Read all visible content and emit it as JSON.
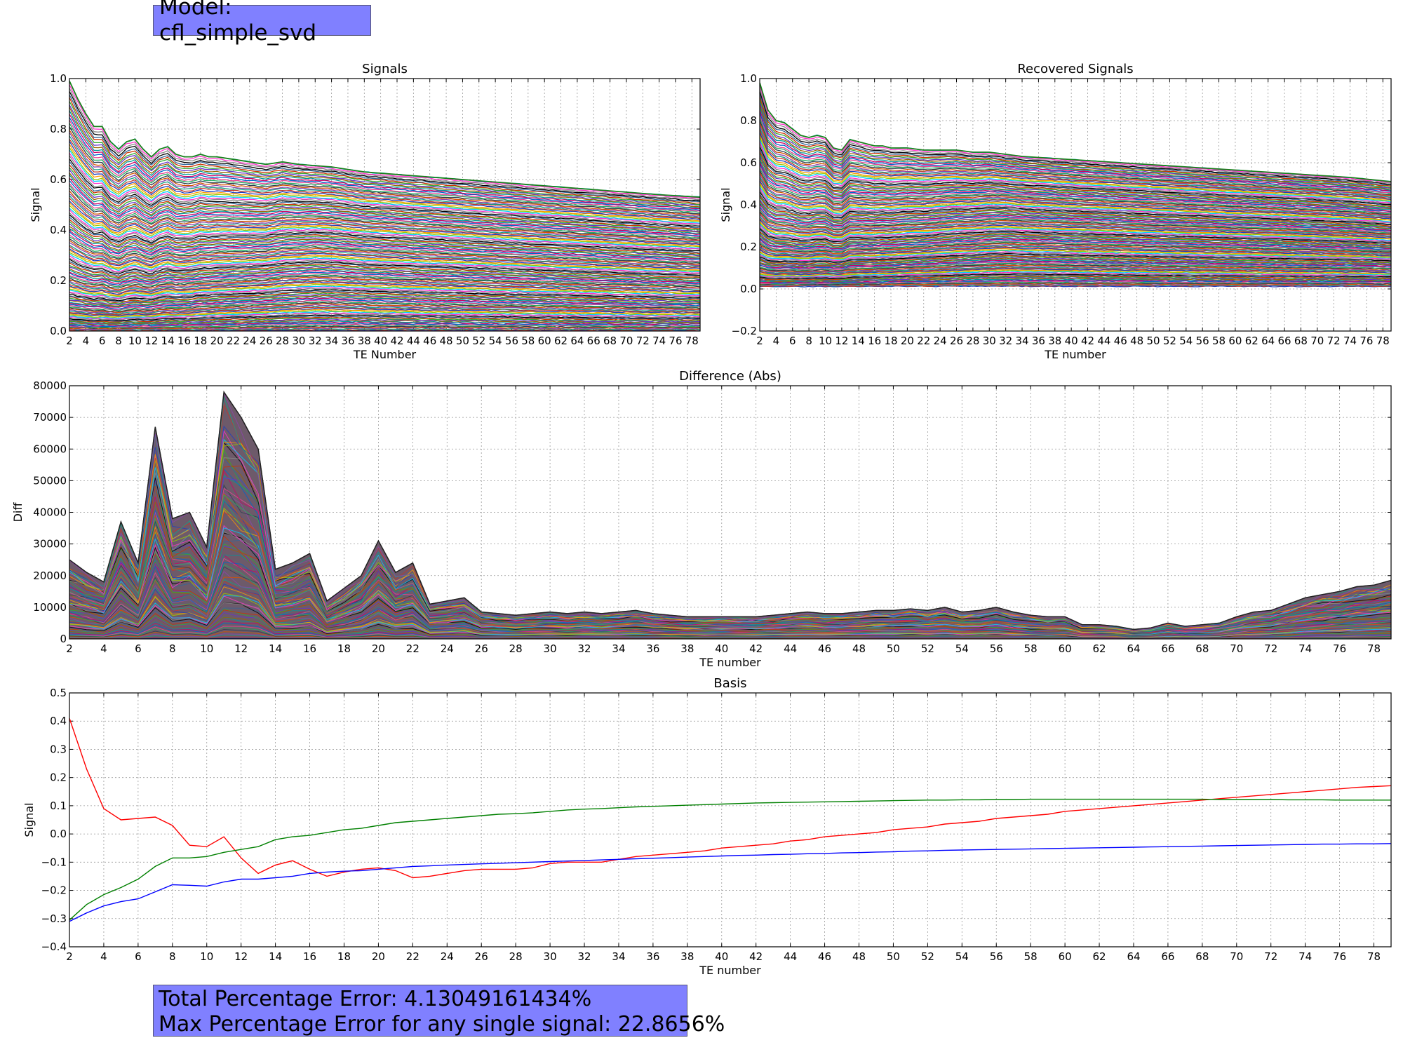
{
  "model_label": "Model: cfl_simple_svd",
  "error_summary": {
    "total_line": "Total Percentage Error: 4.13049161434%",
    "max_line": "Max Percentage Error for any single signal: 22.8656%"
  },
  "colors": {
    "info_box": "#8080ff",
    "basis_red": "#ff0000",
    "basis_green": "#008000",
    "basis_blue": "#0000ff",
    "grid": "#b0b0b0"
  },
  "chart_data": [
    {
      "id": "signals",
      "type": "line",
      "title": "Signals",
      "xlabel": "TE Number",
      "ylabel": "Signal",
      "xlim": [
        2,
        79
      ],
      "ylim": [
        0.0,
        1.0
      ],
      "xticks": [
        2,
        4,
        6,
        8,
        10,
        12,
        14,
        16,
        18,
        20,
        22,
        24,
        26,
        28,
        30,
        32,
        34,
        36,
        38,
        40,
        42,
        44,
        46,
        48,
        50,
        52,
        54,
        56,
        58,
        60,
        62,
        64,
        66,
        68,
        70,
        72,
        74,
        76,
        78
      ],
      "yticks": [
        "0.0",
        "0.2",
        "0.4",
        "0.6",
        "0.8",
        "1.0"
      ],
      "grid": true,
      "envelope_x": [
        2,
        3,
        4,
        5,
        6,
        7,
        8,
        9,
        10,
        11,
        12,
        13,
        14,
        15,
        16,
        17,
        18,
        19,
        20,
        22,
        24,
        26,
        28,
        30,
        34,
        38,
        42,
        46,
        50,
        54,
        58,
        62,
        66,
        70,
        74,
        79
      ],
      "envelope_y": [
        0.99,
        0.92,
        0.86,
        0.81,
        0.81,
        0.75,
        0.72,
        0.75,
        0.76,
        0.72,
        0.69,
        0.72,
        0.73,
        0.7,
        0.69,
        0.69,
        0.7,
        0.69,
        0.69,
        0.68,
        0.67,
        0.66,
        0.67,
        0.66,
        0.65,
        0.63,
        0.62,
        0.61,
        0.6,
        0.59,
        0.58,
        0.57,
        0.56,
        0.55,
        0.54,
        0.53
      ]
    },
    {
      "id": "recovered",
      "type": "line",
      "title": "Recovered Signals",
      "xlabel": "TE number",
      "ylabel": "Signal",
      "xlim": [
        2,
        79
      ],
      "ylim": [
        -0.2,
        1.0
      ],
      "xticks": [
        2,
        4,
        6,
        8,
        10,
        12,
        14,
        16,
        18,
        20,
        22,
        24,
        26,
        28,
        30,
        32,
        34,
        36,
        38,
        40,
        42,
        44,
        46,
        48,
        50,
        52,
        54,
        56,
        58,
        60,
        62,
        64,
        66,
        68,
        70,
        72,
        74,
        76,
        78
      ],
      "yticks": [
        "−0.2",
        "0.0",
        "0.2",
        "0.4",
        "0.6",
        "0.8",
        "1.0"
      ],
      "grid": true,
      "envelope_x": [
        2,
        3,
        4,
        5,
        6,
        7,
        8,
        9,
        10,
        11,
        12,
        13,
        14,
        15,
        16,
        17,
        18,
        19,
        20,
        22,
        24,
        26,
        28,
        30,
        34,
        38,
        42,
        46,
        50,
        54,
        58,
        62,
        66,
        70,
        74,
        79
      ],
      "envelope_y": [
        0.98,
        0.85,
        0.8,
        0.79,
        0.76,
        0.73,
        0.72,
        0.73,
        0.72,
        0.67,
        0.66,
        0.71,
        0.7,
        0.69,
        0.68,
        0.68,
        0.67,
        0.67,
        0.67,
        0.66,
        0.66,
        0.66,
        0.65,
        0.65,
        0.63,
        0.62,
        0.61,
        0.6,
        0.59,
        0.58,
        0.57,
        0.56,
        0.55,
        0.54,
        0.53,
        0.51
      ]
    },
    {
      "id": "difference",
      "type": "area",
      "title": "Difference (Abs)",
      "xlabel": "TE number",
      "ylabel": "Diff",
      "xlim": [
        2,
        79
      ],
      "ylim": [
        0,
        80000
      ],
      "xticks": [
        2,
        4,
        6,
        8,
        10,
        12,
        14,
        16,
        18,
        20,
        22,
        24,
        26,
        28,
        30,
        32,
        34,
        36,
        38,
        40,
        42,
        44,
        46,
        48,
        50,
        52,
        54,
        56,
        58,
        60,
        62,
        64,
        66,
        68,
        70,
        72,
        74,
        76,
        78
      ],
      "yticks": [
        "0",
        "10000",
        "20000",
        "30000",
        "40000",
        "50000",
        "60000",
        "70000",
        "80000"
      ],
      "grid": true,
      "envelope_x": [
        2,
        3,
        4,
        5,
        6,
        7,
        8,
        9,
        10,
        11,
        12,
        13,
        14,
        15,
        16,
        17,
        18,
        19,
        20,
        21,
        22,
        23,
        24,
        25,
        26,
        27,
        28,
        29,
        30,
        31,
        32,
        33,
        34,
        35,
        36,
        37,
        38,
        39,
        40,
        41,
        42,
        43,
        44,
        45,
        46,
        47,
        48,
        49,
        50,
        51,
        52,
        53,
        54,
        55,
        56,
        57,
        58,
        59,
        60,
        61,
        62,
        63,
        64,
        65,
        66,
        67,
        68,
        69,
        70,
        71,
        72,
        73,
        74,
        75,
        76,
        77,
        78,
        79
      ],
      "envelope_y": [
        25000,
        21000,
        18000,
        37000,
        24000,
        67000,
        38000,
        40000,
        29000,
        78000,
        70000,
        60000,
        22000,
        24000,
        27000,
        12000,
        16000,
        20000,
        31000,
        21000,
        24000,
        11000,
        12000,
        13000,
        8500,
        8000,
        7500,
        8000,
        8500,
        8000,
        8500,
        8000,
        8500,
        9000,
        8000,
        7500,
        7000,
        7000,
        7000,
        7000,
        7000,
        7500,
        8000,
        8500,
        8000,
        8000,
        8500,
        9000,
        9000,
        9500,
        9000,
        10000,
        8500,
        9000,
        10000,
        8500,
        7500,
        7000,
        7000,
        4500,
        4500,
        4000,
        3000,
        3500,
        5000,
        4000,
        4500,
        5000,
        7000,
        8500,
        9000,
        11000,
        13000,
        14000,
        15000,
        16500,
        17000,
        18500
      ]
    },
    {
      "id": "basis",
      "type": "line",
      "title": "Basis",
      "xlabel": "TE number",
      "ylabel": "Signal",
      "xlim": [
        2,
        79
      ],
      "ylim": [
        -0.4,
        0.5
      ],
      "xticks": [
        2,
        4,
        6,
        8,
        10,
        12,
        14,
        16,
        18,
        20,
        22,
        24,
        26,
        28,
        30,
        32,
        34,
        36,
        38,
        40,
        42,
        44,
        46,
        48,
        50,
        52,
        54,
        56,
        58,
        60,
        62,
        64,
        66,
        68,
        70,
        72,
        74,
        76,
        78
      ],
      "yticks": [
        "−0.4",
        "−0.3",
        "−0.2",
        "−0.1",
        "0.0",
        "0.1",
        "0.2",
        "0.3",
        "0.4",
        "0.5"
      ],
      "grid": true,
      "x": [
        2,
        3,
        4,
        5,
        6,
        7,
        8,
        9,
        10,
        11,
        12,
        13,
        14,
        15,
        16,
        17,
        18,
        19,
        20,
        21,
        22,
        23,
        24,
        25,
        26,
        27,
        28,
        29,
        30,
        31,
        32,
        33,
        34,
        35,
        36,
        37,
        38,
        39,
        40,
        41,
        42,
        43,
        44,
        45,
        46,
        47,
        48,
        49,
        50,
        51,
        52,
        53,
        54,
        55,
        56,
        57,
        58,
        59,
        60,
        61,
        62,
        63,
        64,
        65,
        66,
        67,
        68,
        69,
        70,
        71,
        72,
        73,
        74,
        75,
        76,
        77,
        78,
        79
      ],
      "series": [
        {
          "color": "#ff0000",
          "values": [
            0.41,
            0.23,
            0.09,
            0.05,
            0.055,
            0.06,
            0.03,
            -0.04,
            -0.045,
            -0.01,
            -0.085,
            -0.14,
            -0.11,
            -0.095,
            -0.125,
            -0.15,
            -0.135,
            -0.125,
            -0.12,
            -0.13,
            -0.155,
            -0.15,
            -0.14,
            -0.13,
            -0.125,
            -0.125,
            -0.125,
            -0.12,
            -0.105,
            -0.1,
            -0.1,
            -0.1,
            -0.09,
            -0.08,
            -0.075,
            -0.07,
            -0.065,
            -0.06,
            -0.05,
            -0.045,
            -0.04,
            -0.035,
            -0.025,
            -0.02,
            -0.01,
            -0.005,
            0.0,
            0.005,
            0.015,
            0.02,
            0.025,
            0.035,
            0.04,
            0.045,
            0.055,
            0.06,
            0.065,
            0.07,
            0.08,
            0.085,
            0.09,
            0.095,
            0.1,
            0.105,
            0.11,
            0.115,
            0.12,
            0.125,
            0.13,
            0.135,
            0.14,
            0.145,
            0.15,
            0.155,
            0.16,
            0.165,
            0.168,
            0.171
          ]
        },
        {
          "color": "#008000",
          "values": [
            -0.305,
            -0.25,
            -0.215,
            -0.19,
            -0.16,
            -0.115,
            -0.085,
            -0.085,
            -0.08,
            -0.065,
            -0.055,
            -0.045,
            -0.02,
            -0.01,
            -0.005,
            0.005,
            0.015,
            0.02,
            0.03,
            0.04,
            0.045,
            0.05,
            0.055,
            0.06,
            0.065,
            0.07,
            0.072,
            0.075,
            0.08,
            0.085,
            0.088,
            0.09,
            0.093,
            0.096,
            0.098,
            0.1,
            0.102,
            0.104,
            0.106,
            0.108,
            0.11,
            0.111,
            0.112,
            0.113,
            0.114,
            0.115,
            0.116,
            0.117,
            0.118,
            0.119,
            0.12,
            0.12,
            0.121,
            0.121,
            0.122,
            0.122,
            0.123,
            0.123,
            0.123,
            0.123,
            0.123,
            0.123,
            0.123,
            0.123,
            0.123,
            0.123,
            0.123,
            0.122,
            0.122,
            0.122,
            0.122,
            0.121,
            0.121,
            0.121,
            0.12,
            0.12,
            0.12,
            0.12
          ]
        },
        {
          "color": "#0000ff",
          "values": [
            -0.31,
            -0.28,
            -0.255,
            -0.24,
            -0.23,
            -0.205,
            -0.18,
            -0.182,
            -0.185,
            -0.17,
            -0.16,
            -0.16,
            -0.155,
            -0.15,
            -0.14,
            -0.135,
            -0.132,
            -0.13,
            -0.125,
            -0.12,
            -0.115,
            -0.113,
            -0.11,
            -0.108,
            -0.106,
            -0.104,
            -0.102,
            -0.1,
            -0.098,
            -0.096,
            -0.094,
            -0.092,
            -0.09,
            -0.088,
            -0.086,
            -0.084,
            -0.082,
            -0.08,
            -0.078,
            -0.076,
            -0.075,
            -0.073,
            -0.072,
            -0.07,
            -0.069,
            -0.067,
            -0.066,
            -0.064,
            -0.063,
            -0.061,
            -0.06,
            -0.058,
            -0.057,
            -0.056,
            -0.055,
            -0.054,
            -0.053,
            -0.052,
            -0.051,
            -0.05,
            -0.049,
            -0.048,
            -0.047,
            -0.046,
            -0.045,
            -0.044,
            -0.043,
            -0.042,
            -0.041,
            -0.04,
            -0.039,
            -0.038,
            -0.037,
            -0.036,
            -0.036,
            -0.035,
            -0.035,
            -0.034
          ]
        }
      ]
    }
  ]
}
